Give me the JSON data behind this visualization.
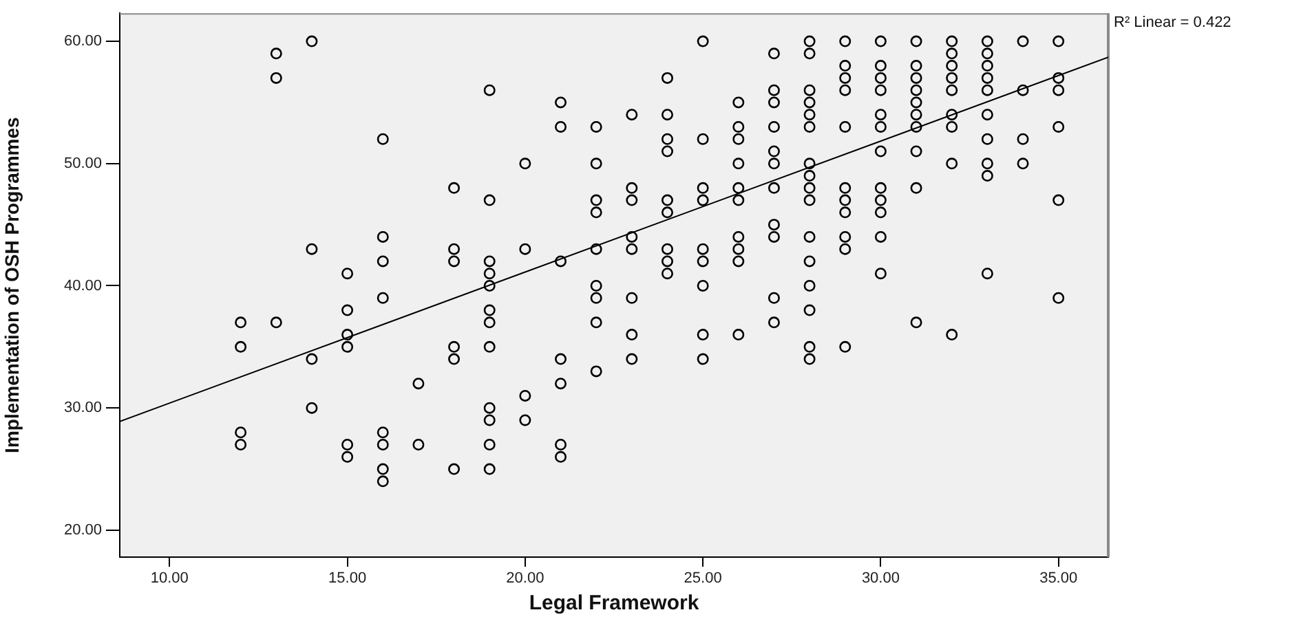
{
  "chart_data": {
    "type": "scatter",
    "xlabel": "Legal Framework",
    "ylabel": "Implementation of OSH Programmes",
    "annotations": [
      "R² Linear = 0.422"
    ],
    "xlim": [
      8.6,
      36.4
    ],
    "ylim": [
      17.8,
      62.3
    ],
    "xticks": [
      {
        "value": 10,
        "label": "10.00"
      },
      {
        "value": 15,
        "label": "15.00"
      },
      {
        "value": 20,
        "label": "20.00"
      },
      {
        "value": 25,
        "label": "25.00"
      },
      {
        "value": 30,
        "label": "30.00"
      },
      {
        "value": 35,
        "label": "35.00"
      }
    ],
    "yticks": [
      {
        "value": 20,
        "label": "20.00"
      },
      {
        "value": 30,
        "label": "30.00"
      },
      {
        "value": 40,
        "label": "40.00"
      },
      {
        "value": 50,
        "label": "50.00"
      },
      {
        "value": 60,
        "label": "60.00"
      }
    ],
    "grid": false,
    "legend": false,
    "marker": "circle",
    "series": [
      {
        "color": "#000000",
        "x": [
          12,
          12,
          12,
          12,
          13,
          13,
          13,
          14,
          14,
          14,
          14,
          15,
          15,
          15,
          15,
          15,
          15,
          16,
          16,
          16,
          16,
          16,
          16,
          16,
          16,
          17,
          17,
          18,
          18,
          18,
          18,
          18,
          18,
          19,
          19,
          19,
          19,
          19,
          19,
          19,
          19,
          19,
          19,
          19,
          19,
          20,
          20,
          20,
          20,
          21,
          21,
          21,
          21,
          21,
          21,
          21,
          22,
          22,
          22,
          22,
          22,
          22,
          22,
          22,
          22,
          23,
          23,
          23,
          23,
          23,
          23,
          23,
          23,
          24,
          24,
          24,
          24,
          24,
          24,
          24,
          24,
          24,
          25,
          25,
          25,
          25,
          25,
          25,
          25,
          25,
          25,
          26,
          26,
          26,
          26,
          26,
          26,
          26,
          26,
          26,
          26,
          27,
          27,
          27,
          27,
          27,
          27,
          27,
          27,
          27,
          27,
          27,
          28,
          28,
          28,
          28,
          28,
          28,
          28,
          28,
          28,
          28,
          28,
          28,
          28,
          28,
          28,
          28,
          29,
          29,
          29,
          29,
          29,
          29,
          29,
          29,
          29,
          29,
          29,
          30,
          30,
          30,
          30,
          30,
          30,
          30,
          30,
          30,
          30,
          30,
          30,
          31,
          31,
          31,
          31,
          31,
          31,
          31,
          31,
          31,
          31,
          32,
          32,
          32,
          32,
          32,
          32,
          32,
          32,
          32,
          33,
          33,
          33,
          33,
          33,
          33,
          33,
          33,
          33,
          33,
          34,
          34,
          34,
          34,
          35,
          35,
          35,
          35,
          35,
          35
        ],
        "values": [
          37,
          35,
          28,
          27,
          59,
          57,
          37,
          60,
          43,
          34,
          30,
          41,
          38,
          36,
          35,
          27,
          26,
          52,
          44,
          42,
          39,
          28,
          27,
          25,
          24,
          32,
          27,
          48,
          43,
          42,
          35,
          34,
          25,
          56,
          47,
          42,
          41,
          40,
          38,
          37,
          35,
          30,
          29,
          27,
          25,
          50,
          43,
          31,
          29,
          55,
          53,
          42,
          34,
          32,
          27,
          26,
          53,
          50,
          47,
          46,
          43,
          40,
          39,
          37,
          33,
          54,
          48,
          47,
          44,
          43,
          39,
          36,
          34,
          57,
          54,
          52,
          51,
          47,
          46,
          43,
          42,
          41,
          60,
          52,
          48,
          47,
          43,
          42,
          40,
          36,
          34,
          55,
          53,
          52,
          50,
          48,
          47,
          44,
          43,
          42,
          36,
          59,
          56,
          55,
          53,
          51,
          50,
          48,
          45,
          44,
          39,
          37,
          60,
          59,
          56,
          55,
          54,
          53,
          50,
          49,
          48,
          47,
          44,
          42,
          40,
          38,
          35,
          34,
          60,
          58,
          57,
          56,
          53,
          48,
          47,
          46,
          44,
          43,
          35,
          60,
          58,
          57,
          56,
          54,
          53,
          51,
          48,
          47,
          46,
          44,
          41,
          60,
          58,
          57,
          56,
          55,
          54,
          53,
          51,
          48,
          37,
          60,
          59,
          58,
          57,
          56,
          54,
          53,
          50,
          36,
          60,
          59,
          58,
          57,
          56,
          54,
          52,
          50,
          49,
          41,
          60,
          56,
          52,
          50,
          60,
          57,
          56,
          53,
          47,
          39
        ]
      },
      {
        "type": "line",
        "color": "#000000",
        "marker": "none",
        "x": [
          8.6,
          36.4
        ],
        "values": [
          28.9,
          58.7
        ]
      }
    ]
  }
}
